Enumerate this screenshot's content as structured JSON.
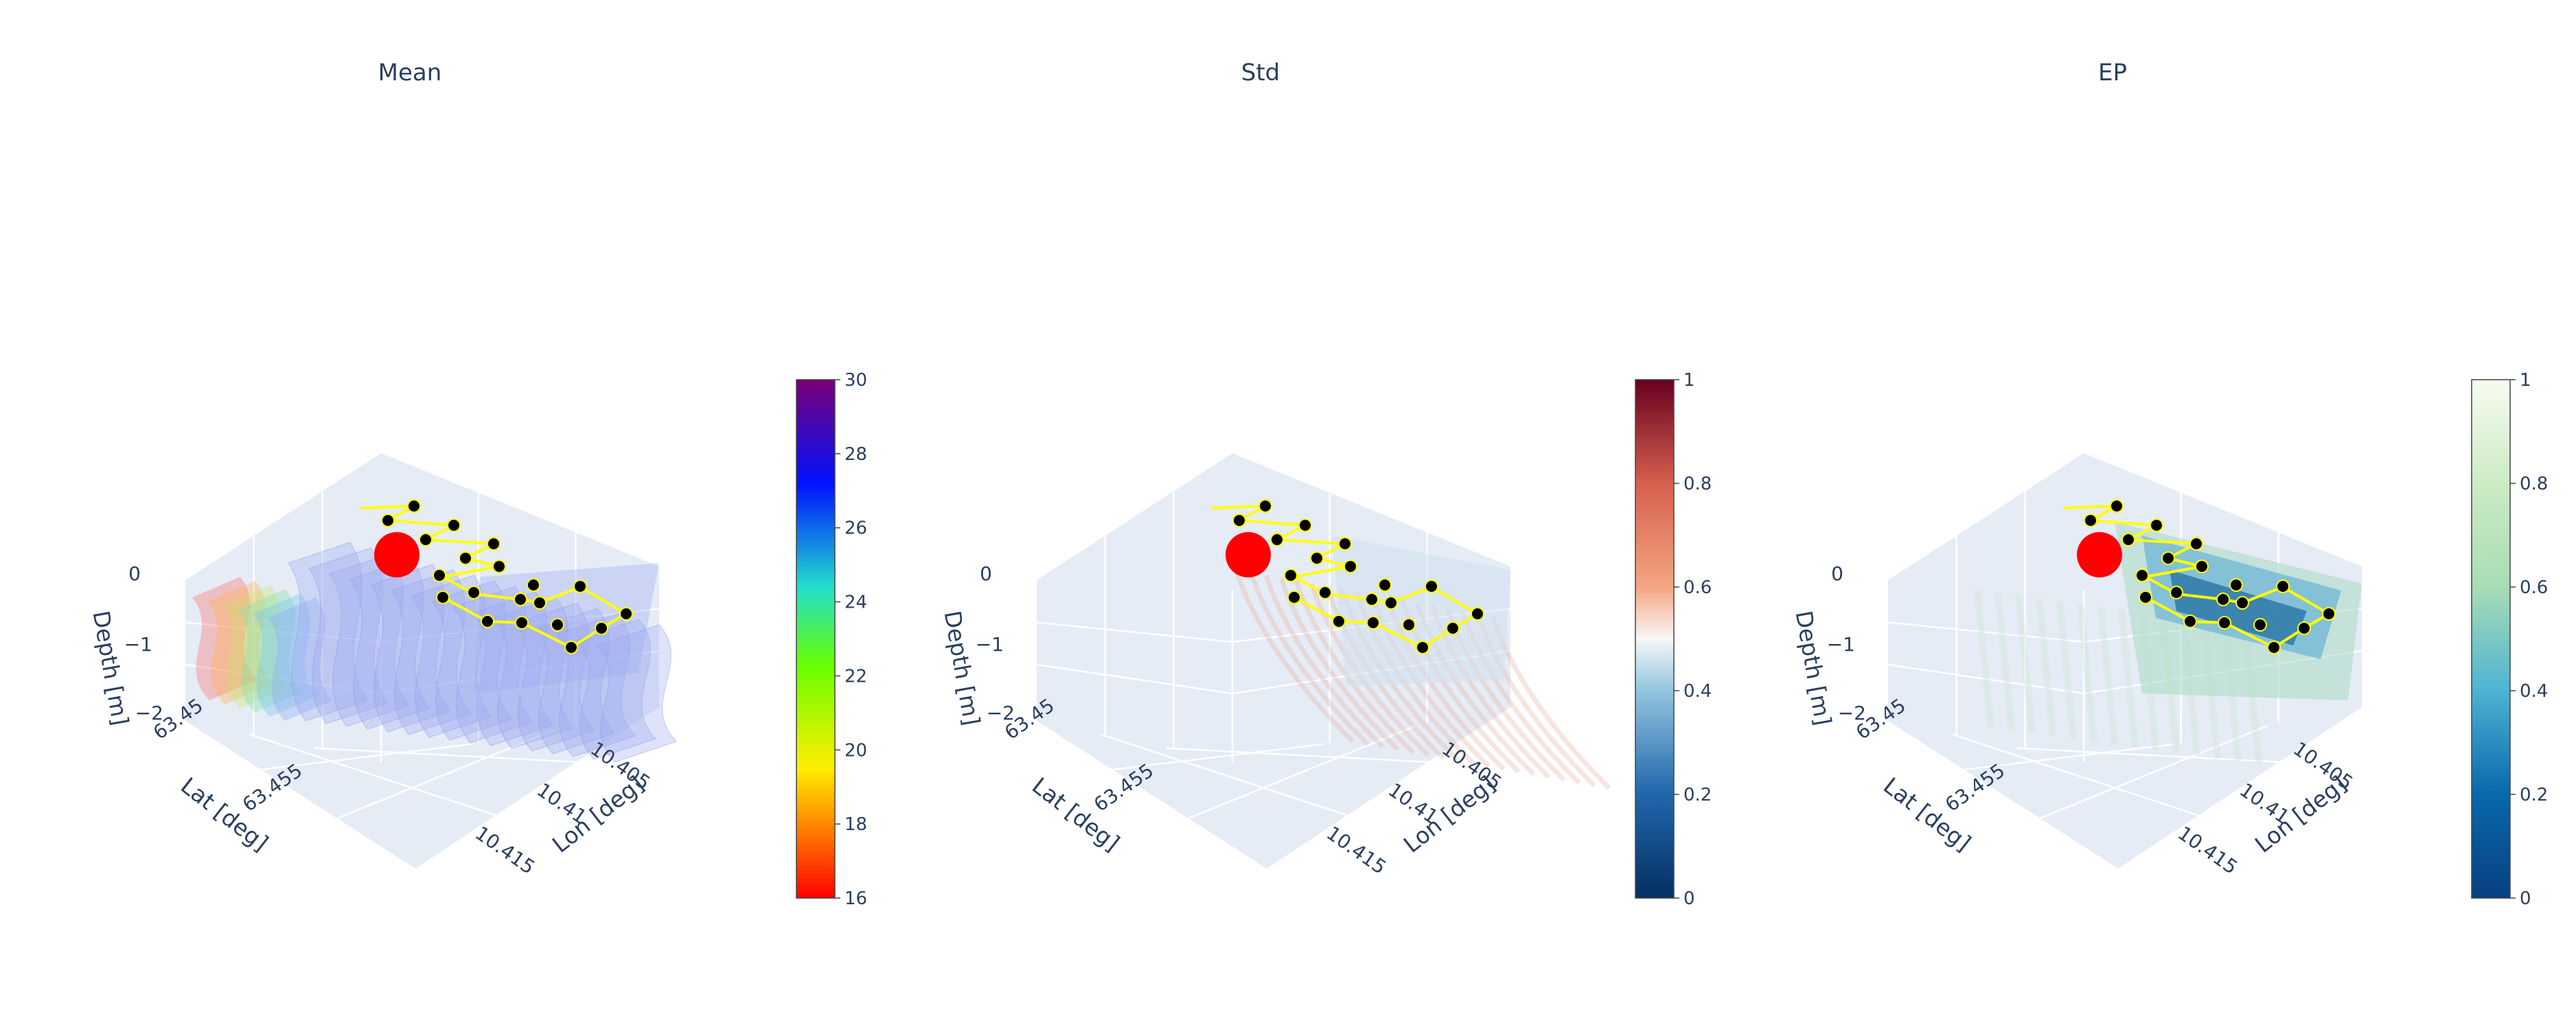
{
  "panels": [
    {
      "title": "Mean",
      "colorscale_name": "Rainbow",
      "colorbar": {
        "min": 16,
        "max": 30,
        "ticks": [
          16,
          18,
          20,
          22,
          24,
          26,
          28,
          30
        ],
        "stops": [
          [
            "0",
            "#ff0000"
          ],
          [
            "0.25",
            "#ffee00"
          ],
          [
            "0.45",
            "#66ff00"
          ],
          [
            "0.6",
            "#22ddcc"
          ],
          [
            "0.8",
            "#0011ff"
          ],
          [
            "1",
            "#7a0077"
          ]
        ]
      },
      "volume_color": "#9aa8f0"
    },
    {
      "title": "Std",
      "colorscale_name": "RdBu",
      "colorbar": {
        "min": 0,
        "max": 1,
        "ticks": [
          "0",
          "0.2",
          "0.4",
          "0.6",
          "0.8",
          "1"
        ],
        "stops": [
          [
            "0",
            "#053061"
          ],
          [
            "0.2",
            "#2166ac"
          ],
          [
            "0.4",
            "#92c5de"
          ],
          [
            "0.5",
            "#f7f7f7"
          ],
          [
            "0.6",
            "#f4a582"
          ],
          [
            "0.8",
            "#d6604d"
          ],
          [
            "1",
            "#67001f"
          ]
        ]
      },
      "volume_color": "#e9b4a4"
    },
    {
      "title": "EP",
      "colorscale_name": "GnBu",
      "colorbar": {
        "min": 0,
        "max": 1,
        "ticks": [
          "0",
          "0.2",
          "0.4",
          "0.6",
          "0.8",
          "1"
        ],
        "stops": [
          [
            "0",
            "#084081"
          ],
          [
            "0.2",
            "#0868ac"
          ],
          [
            "0.4",
            "#4eb3d3"
          ],
          [
            "0.6",
            "#a8ddb5"
          ],
          [
            "0.8",
            "#ccebc5"
          ],
          [
            "1",
            "#f7fcf0"
          ]
        ]
      },
      "volume_color": "#6fb6d6"
    }
  ],
  "axes": {
    "depth_title": "Depth [m]",
    "lat_title": "Lat [deg]",
    "lon_title": "Lon [deg]",
    "depth_ticks": [
      "0",
      "−1",
      "−2"
    ],
    "lat_ticks": [
      "63.45",
      "63.455"
    ],
    "lon_ticks": [
      "10.405",
      "10.41",
      "10.415"
    ]
  },
  "chart_data": {
    "type": "3d-volume",
    "subplots": [
      "Mean",
      "Std",
      "EP"
    ],
    "zlabel": "Depth [m]",
    "ylabel": "Lat [deg]",
    "xlabel": "Lon [deg]",
    "zlim": [
      -2,
      0
    ],
    "ylim": [
      63.45,
      63.458
    ],
    "xlim": [
      10.403,
      10.417
    ],
    "colorbars": [
      {
        "subplot": "Mean",
        "range": [
          16,
          30
        ]
      },
      {
        "subplot": "Std",
        "range": [
          0,
          1
        ]
      },
      {
        "subplot": "EP",
        "range": [
          0,
          1
        ]
      }
    ],
    "markers": {
      "path_color": "#ffff00",
      "waypoint_color": "#000000",
      "current_location_color": "#ff0000"
    },
    "legend": "none"
  }
}
